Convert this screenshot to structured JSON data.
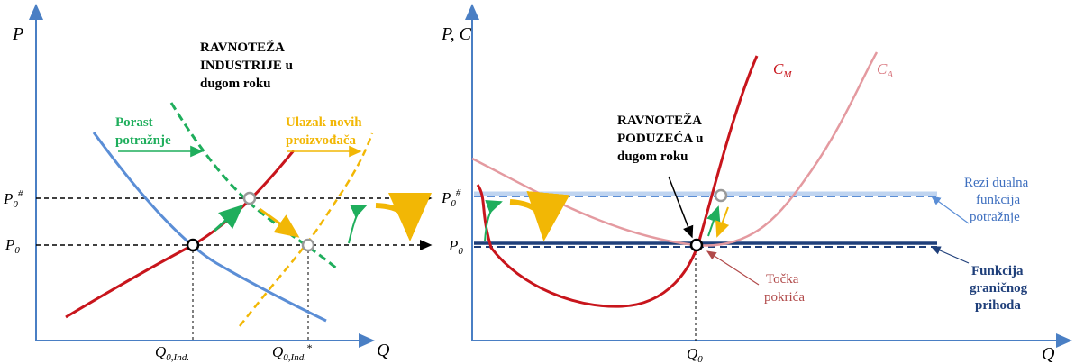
{
  "colors": {
    "axis": "#4a7fc4",
    "demand_old": "#5b8ed6",
    "demand_new": "#1fae5c",
    "supply_old": "#c8151c",
    "supply_new": "#f2b705",
    "shift_arrow": "#f2b705",
    "cm": "#c8151c",
    "ca": "#e49aa0",
    "mr_new": "#5b8ed6",
    "mr_old": "#1f3f7a",
    "break_even": "#b14a4a",
    "text_blue": "#3e6fbf",
    "text_navy": "#1f3f7a"
  },
  "left": {
    "y_axis": "P",
    "x_axis": "Q",
    "title": [
      "RAVNOTEŽA",
      "INDUSTRIJE u",
      "dugom roku"
    ],
    "demand_label": [
      "Porast",
      "potražnje"
    ],
    "supply_label": [
      "Ulazak novih",
      "proizvođača"
    ],
    "p_high": "P",
    "p_high_sub": "0",
    "p_high_sup": "#",
    "p_low": "P",
    "p_low_sub": "0",
    "q_low": "Q",
    "q_low_sub": "0,Ind.",
    "q_high": "Q",
    "q_high_sub": "0,Ind.",
    "q_high_sup": "*"
  },
  "right": {
    "y_axis": "P, C",
    "x_axis": "Q",
    "cm_label": "C",
    "cm_sub": "M",
    "ca_label": "C",
    "ca_sub": "A",
    "title": [
      "RAVNOTEŽA",
      "PODUZEĆA u",
      "dugom roku"
    ],
    "p_high": "P",
    "p_high_sub": "0",
    "p_high_sup": "#",
    "p_low": "P",
    "p_low_sub": "0",
    "q": "Q",
    "q_sub": "0",
    "residual_label": [
      "Rezi dualna",
      "funkcija",
      "potražnje"
    ],
    "mr_label": [
      "Funkcija",
      "graničnog",
      "prihoda"
    ],
    "break_even_label": [
      "Točka",
      "pokrića"
    ]
  }
}
